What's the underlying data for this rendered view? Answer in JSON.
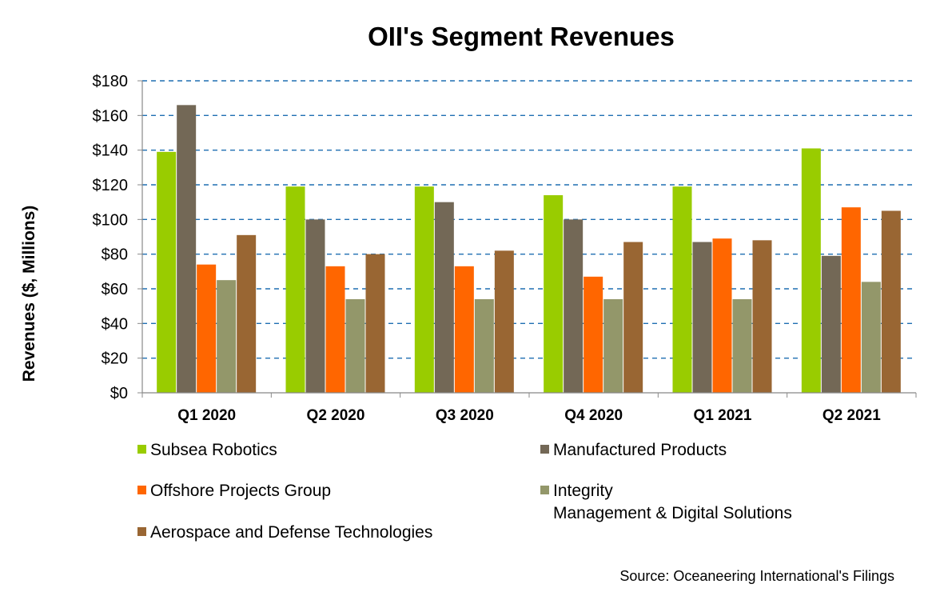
{
  "chart_data": {
    "type": "bar",
    "title": "OII's Segment Revenues",
    "ylabel": "Revenues ($, Millions)",
    "xlabel": "",
    "categories": [
      "Q1 2020",
      "Q2 2020",
      "Q3 2020",
      "Q4 2020",
      "Q1 2021",
      "Q2 2021"
    ],
    "ylim": [
      0,
      180
    ],
    "yticks": [
      "$0",
      "$20",
      "$40",
      "$60",
      "$80",
      "$100",
      "$120",
      "$140",
      "$160",
      "$180"
    ],
    "grid": true,
    "legend_position": "bottom",
    "series": [
      {
        "name": "Subsea Robotics",
        "color": "#99cc00",
        "values": [
          139,
          119,
          119,
          114,
          119,
          141
        ]
      },
      {
        "name": "Manufactured Products",
        "color": "#736856",
        "values": [
          166,
          100,
          110,
          100,
          87,
          79
        ]
      },
      {
        "name": "Offshore Projects Group",
        "color": "#ff6600",
        "values": [
          74,
          73,
          73,
          67,
          89,
          107
        ]
      },
      {
        "name": "Integrity Management & Digital Solutions",
        "legend_lines": [
          "Integrity",
          "Management & Digital Solutions"
        ],
        "color": "#93976a",
        "values": [
          65,
          54,
          54,
          54,
          54,
          64
        ]
      },
      {
        "name": "Aerospace and Defense Technologies",
        "color": "#996633",
        "values": [
          91,
          80,
          82,
          87,
          88,
          105
        ]
      }
    ],
    "source": "Source: Oceaneering International's Filings"
  }
}
